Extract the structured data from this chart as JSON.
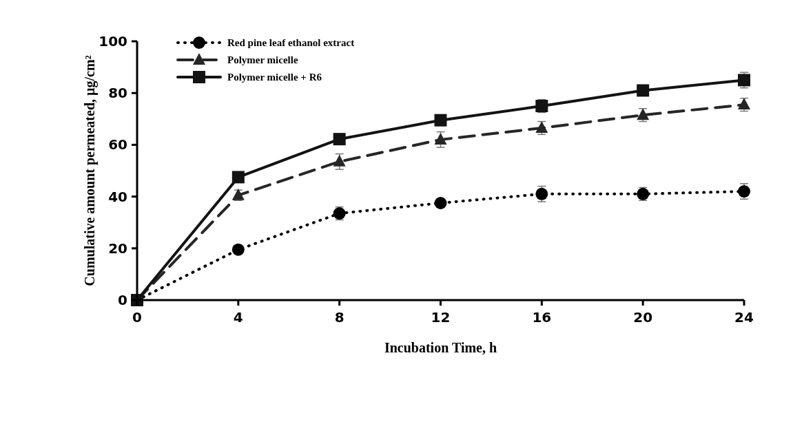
{
  "chart_data": {
    "type": "line",
    "xlabel": "Incubation Time, h",
    "ylabel": "Cumulative amount permeated, µg/cm²",
    "x": [
      0,
      4,
      8,
      12,
      16,
      20,
      24
    ],
    "xlim": [
      0,
      24
    ],
    "xticks": [
      0,
      4,
      8,
      12,
      16,
      20,
      24
    ],
    "ylim": [
      0,
      100
    ],
    "yticks": [
      0,
      20,
      40,
      60,
      80,
      100
    ],
    "grid": false,
    "legend": "top left",
    "series": [
      {
        "name": "Red pine leaf ethanol extract",
        "color": "#000000",
        "marker": "circle",
        "line_style": "dotted",
        "values": [
          0,
          19.5,
          33.5,
          37.5,
          41,
          41,
          42
        ],
        "errors": [
          null,
          1,
          2.5,
          1.5,
          3,
          2.5,
          3
        ]
      },
      {
        "name": "Polymer micelle",
        "color": "#262626",
        "marker": "triangle",
        "line_style": "dashed",
        "values": [
          0,
          40.5,
          53.5,
          62,
          66.5,
          71.5,
          75.5
        ],
        "errors": [
          null,
          2,
          3,
          3,
          2.5,
          2.5,
          2.5
        ]
      },
      {
        "name": "Polymer micelle + R6",
        "color": "#131313",
        "marker": "square",
        "line_style": "solid",
        "values": [
          0,
          47.5,
          62.2,
          69.5,
          75,
          81,
          85
        ],
        "errors": [
          null,
          1,
          1.5,
          1,
          2.5,
          2,
          3
        ]
      }
    ]
  }
}
